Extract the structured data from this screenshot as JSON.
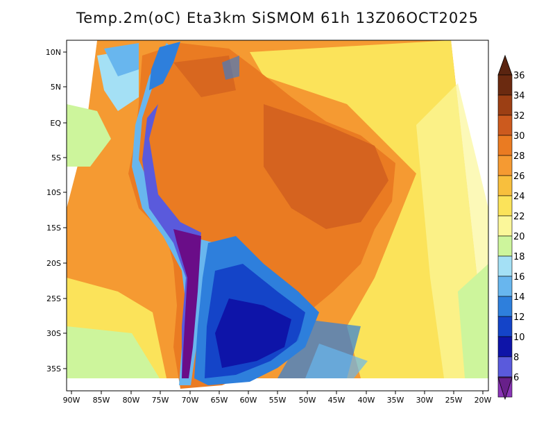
{
  "title": "Temp.2m(oC) Eta3km SiSMOM 61h 13Z06OCT2025",
  "lat_labels": [
    "10N",
    "5N",
    "EQ",
    "5S",
    "10S",
    "15S",
    "20S",
    "25S",
    "30S",
    "35S"
  ],
  "lon_labels": [
    "90W",
    "85W",
    "80W",
    "75W",
    "70W",
    "65W",
    "60W",
    "55W",
    "50W",
    "45W",
    "40W",
    "35W",
    "30W",
    "25W",
    "20W"
  ],
  "colorbar": {
    "labels": [
      "36",
      "34",
      "32",
      "30",
      "28",
      "26",
      "24",
      "22",
      "20",
      "18",
      "16",
      "14",
      "12",
      "10",
      "8",
      "6"
    ],
    "colors": [
      "#6b2a10",
      "#9c3f14",
      "#cc5a1e",
      "#ea7b22",
      "#f59a32",
      "#f8bf3d",
      "#fbe35a",
      "#fbf79a",
      "#cdf59c",
      "#a4e0f5",
      "#68b6ee",
      "#2e7fdc",
      "#1444c8",
      "#0e14a8",
      "#5a5adc",
      "#8a35b6",
      "#6a0d88"
    ],
    "top_color": "#5a2410",
    "bottom_color": "#68208a"
  }
}
